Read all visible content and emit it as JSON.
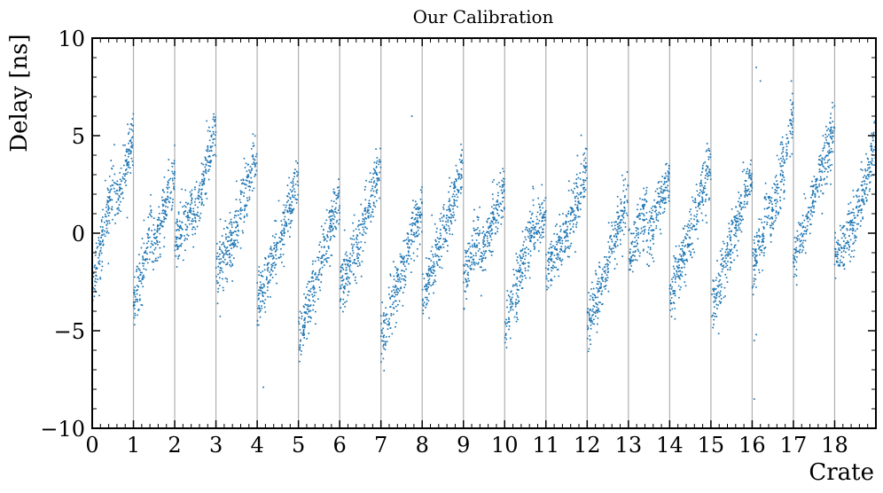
{
  "chart_data": {
    "type": "scatter",
    "title": "Our Calibration",
    "xlabel": "Crate",
    "ylabel": "Delay [ns]",
    "xlim": [
      0,
      19
    ],
    "ylim": [
      -10,
      10
    ],
    "x_ticks": [
      0,
      1,
      2,
      3,
      4,
      5,
      6,
      7,
      8,
      9,
      10,
      11,
      12,
      13,
      14,
      15,
      16,
      17,
      18
    ],
    "x_tick_labels": [
      "0",
      "1",
      "2",
      "3",
      "4",
      "5",
      "6",
      "7",
      "8",
      "9",
      "10",
      "11",
      "12",
      "13",
      "14",
      "15",
      "16",
      "17",
      "18"
    ],
    "y_ticks": [
      -10,
      -5,
      0,
      5,
      10
    ],
    "y_tick_labels": [
      "−10",
      "−5",
      "0",
      "5",
      "10"
    ],
    "grid": "vertical lines at each crate boundary",
    "point_color": "#1f77b4",
    "grid_color": "#b0b0b0",
    "series": [
      {
        "crates": [
          {
            "crate": 0,
            "segments": [
              {
                "x0": 0.0,
                "x1": 0.55,
                "y_start": -2.8,
                "y_end": 3.0
              },
              {
                "x0": 0.55,
                "x1": 1.0,
                "y_start": 1.5,
                "y_end": 5.0
              }
            ]
          },
          {
            "crate": 1,
            "segments": [
              {
                "x0": 1.0,
                "x1": 1.45,
                "y_start": -3.8,
                "y_end": 0.5
              },
              {
                "x0": 1.45,
                "x1": 2.0,
                "y_start": -1.0,
                "y_end": 3.0
              }
            ]
          },
          {
            "crate": 2,
            "segments": [
              {
                "x0": 2.0,
                "x1": 2.45,
                "y_start": -0.5,
                "y_end": 1.5
              },
              {
                "x0": 2.45,
                "x1": 3.0,
                "y_start": 0.5,
                "y_end": 5.5
              }
            ]
          },
          {
            "crate": 3,
            "segments": [
              {
                "x0": 3.0,
                "x1": 3.3,
                "y_start": -2.0,
                "y_end": -0.5
              },
              {
                "x0": 3.3,
                "x1": 4.0,
                "y_start": -1.0,
                "y_end": 4.0
              }
            ]
          },
          {
            "crate": 4,
            "segments": [
              {
                "x0": 4.0,
                "x1": 4.5,
                "y_start": -3.8,
                "y_end": -0.5
              },
              {
                "x0": 4.5,
                "x1": 5.0,
                "y_start": -1.0,
                "y_end": 3.0
              }
            ]
          },
          {
            "crate": 5,
            "segments": [
              {
                "x0": 5.0,
                "x1": 6.0,
                "y_start": -5.5,
                "y_end": 2.0
              }
            ]
          },
          {
            "crate": 6,
            "segments": [
              {
                "x0": 6.0,
                "x1": 6.6,
                "y_start": -2.8,
                "y_end": 0.5
              },
              {
                "x0": 6.6,
                "x1": 7.0,
                "y_start": 0.5,
                "y_end": 3.5
              }
            ]
          },
          {
            "crate": 7,
            "segments": [
              {
                "x0": 7.0,
                "x1": 8.0,
                "y_start": -5.5,
                "y_end": 1.5
              }
            ]
          },
          {
            "crate": 8,
            "segments": [
              {
                "x0": 8.0,
                "x1": 8.55,
                "y_start": -3.5,
                "y_end": 0.5
              },
              {
                "x0": 8.55,
                "x1": 9.0,
                "y_start": 0.0,
                "y_end": 3.5
              }
            ]
          },
          {
            "crate": 9,
            "segments": [
              {
                "x0": 9.0,
                "x1": 9.4,
                "y_start": -2.5,
                "y_end": 0.0
              },
              {
                "x0": 9.4,
                "x1": 10.0,
                "y_start": -1.5,
                "y_end": 2.5
              }
            ]
          },
          {
            "crate": 10,
            "segments": [
              {
                "x0": 10.0,
                "x1": 10.7,
                "y_start": -5.0,
                "y_end": 0.5
              },
              {
                "x0": 10.7,
                "x1": 11.0,
                "y_start": -0.5,
                "y_end": 1.5
              }
            ]
          },
          {
            "crate": 11,
            "segments": [
              {
                "x0": 11.0,
                "x1": 11.6,
                "y_start": -2.0,
                "y_end": 0.5
              },
              {
                "x0": 11.6,
                "x1": 12.0,
                "y_start": 0.5,
                "y_end": 3.5
              }
            ]
          },
          {
            "crate": 12,
            "segments": [
              {
                "x0": 12.0,
                "x1": 13.0,
                "y_start": -5.0,
                "y_end": 2.0
              }
            ]
          },
          {
            "crate": 13,
            "segments": [
              {
                "x0": 13.0,
                "x1": 13.45,
                "y_start": -1.5,
                "y_end": 1.5
              },
              {
                "x0": 13.45,
                "x1": 14.0,
                "y_start": -0.5,
                "y_end": 3.0
              }
            ]
          },
          {
            "crate": 14,
            "segments": [
              {
                "x0": 14.0,
                "x1": 15.0,
                "y_start": -3.5,
                "y_end": 3.5
              }
            ]
          },
          {
            "crate": 15,
            "segments": [
              {
                "x0": 15.0,
                "x1": 16.0,
                "y_start": -4.0,
                "y_end": 3.0
              }
            ]
          },
          {
            "crate": 16,
            "segments": [
              {
                "x0": 16.0,
                "x1": 16.45,
                "y_start": -2.0,
                "y_end": 1.5
              },
              {
                "x0": 16.45,
                "x1": 17.0,
                "y_start": 0.5,
                "y_end": 6.0
              }
            ]
          },
          {
            "crate": 17,
            "segments": [
              {
                "x0": 17.0,
                "x1": 18.0,
                "y_start": -1.5,
                "y_end": 5.5
              }
            ]
          },
          {
            "crate": 18,
            "segments": [
              {
                "x0": 18.0,
                "x1": 18.5,
                "y_start": -1.5,
                "y_end": 0.5
              },
              {
                "x0": 18.5,
                "x1": 19.0,
                "y_start": 0.5,
                "y_end": 4.5
              }
            ]
          }
        ],
        "spread": 1.6,
        "points_per_crate": 260
      }
    ],
    "outliers": [
      {
        "x": 4.15,
        "y": -7.9
      },
      {
        "x": 7.75,
        "y": 6.0
      },
      {
        "x": 16.05,
        "y": -8.5
      },
      {
        "x": 16.1,
        "y": 8.5
      },
      {
        "x": 16.2,
        "y": 7.8
      },
      {
        "x": 16.1,
        "y": -5.2
      },
      {
        "x": 16.05,
        "y": -5.5
      },
      {
        "x": 16.95,
        "y": 7.8
      }
    ]
  }
}
